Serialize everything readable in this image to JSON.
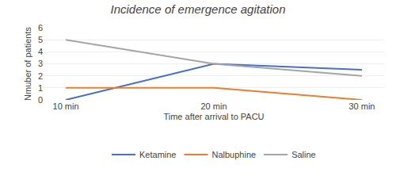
{
  "chart_data": {
    "type": "line",
    "title": "Incidence of emergence agitation",
    "xlabel": "Time after arrival to PACU",
    "ylabel": "Nmuber of patients",
    "categories": [
      "10 min",
      "20 min",
      "30 min"
    ],
    "series": [
      {
        "name": "Ketamine",
        "color": "#4472C4",
        "values": [
          0,
          3,
          2.5
        ]
      },
      {
        "name": "Nalbuphine",
        "color": "#ED7D31",
        "values": [
          1,
          1,
          0
        ]
      },
      {
        "name": "Saline",
        "color": "#A5A5A5",
        "values": [
          5,
          3,
          2
        ]
      }
    ],
    "ylim": [
      0,
      6
    ],
    "yticks": [
      0,
      1,
      2,
      3,
      4,
      5,
      6
    ],
    "grid": true,
    "legend": "bottom"
  }
}
